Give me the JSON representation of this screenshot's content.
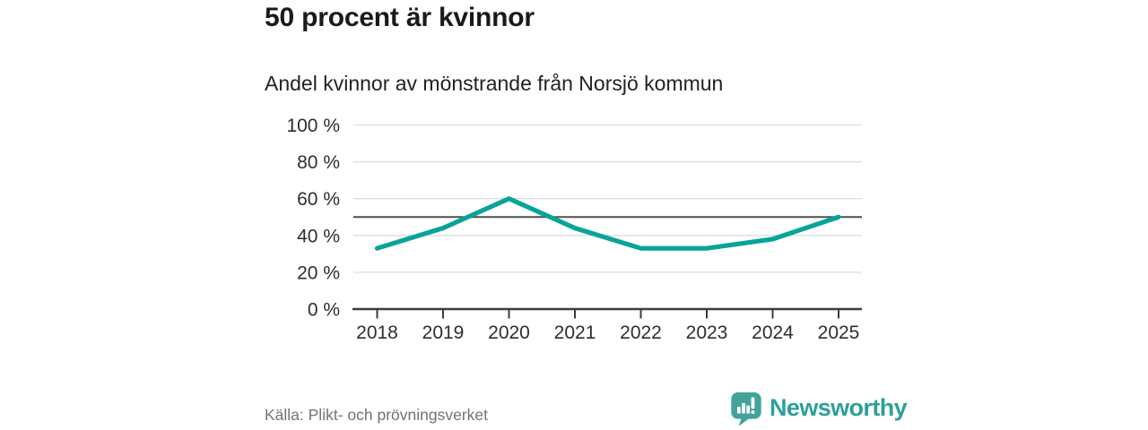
{
  "header": {
    "title": "50 procent är kvinnor",
    "subtitle": "Andel kvinnor av mönstrande från Norsjö kommun"
  },
  "chart_data": {
    "type": "line",
    "title": "50 procent är kvinnor",
    "subtitle": "Andel kvinnor av mönstrande från Norsjö kommun",
    "x": [
      "2018",
      "2019",
      "2020",
      "2021",
      "2022",
      "2023",
      "2024",
      "2025"
    ],
    "series": [
      {
        "name": "",
        "values": [
          33,
          44,
          60,
          44,
          33,
          33,
          38,
          50
        ]
      }
    ],
    "xlabel": "",
    "ylabel": "",
    "ylim": [
      0,
      100
    ],
    "yticks": [
      0,
      20,
      40,
      60,
      80,
      100
    ],
    "ytick_labels": [
      "0 %",
      "20 %",
      "40 %",
      "60 %",
      "80 %",
      "100 %"
    ],
    "reference_line": {
      "value": 50
    },
    "grid": true,
    "legend": "none",
    "line_color": "#09a39a"
  },
  "footer": {
    "source": "Källa: Plikt- och prövningsverket",
    "brand": "Newsworthy"
  },
  "colors": {
    "accent_teal": "#09a39a",
    "brand_teal": "#2da09a",
    "brand_icon_teal": "#43a39b",
    "reference_line_gray": "#4f4f4f",
    "axis_gray": "#3c3c3c",
    "gridline_gray": "#dedede",
    "source_gray": "#71717b"
  }
}
